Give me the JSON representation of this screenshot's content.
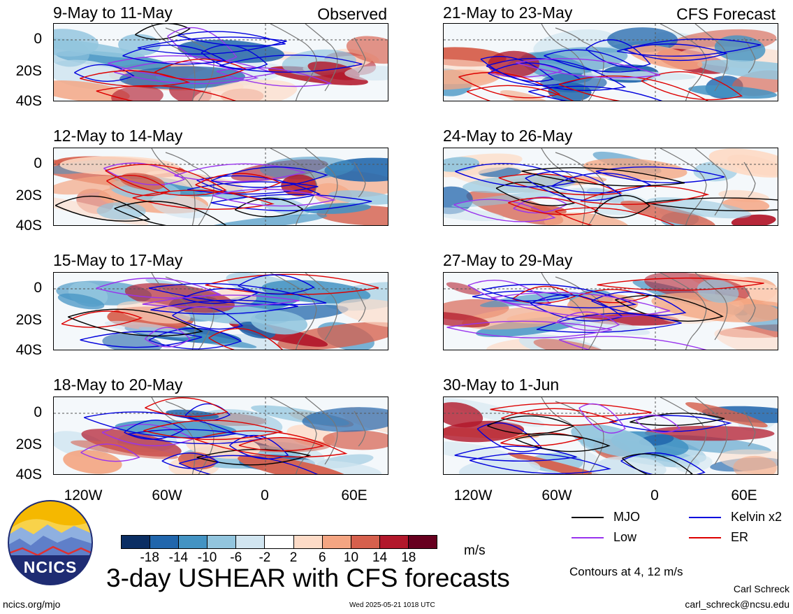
{
  "panels": [
    {
      "title": "9-May to 11-May",
      "tag": "Observed",
      "seed": 11
    },
    {
      "title": "12-May to 14-May",
      "tag": "",
      "seed": 23
    },
    {
      "title": "15-May to 17-May",
      "tag": "",
      "seed": 37
    },
    {
      "title": "18-May to 20-May",
      "tag": "",
      "seed": 41
    },
    {
      "title": "21-May to 23-May",
      "tag": "CFS Forecast",
      "seed": 53
    },
    {
      "title": "24-May to 26-May",
      "tag": "",
      "seed": 67
    },
    {
      "title": "27-May to 29-May",
      "tag": "",
      "seed": 71
    },
    {
      "title": "30-May to 1-Jun",
      "tag": "",
      "seed": 89
    }
  ],
  "y_ticks": [
    "0",
    "20S",
    "40S"
  ],
  "x_ticks": [
    "120W",
    "60W",
    "0",
    "60E"
  ],
  "colorbar": {
    "ticks": [
      "-18",
      "-14",
      "-10",
      "-6",
      "-2",
      "2",
      "6",
      "10",
      "14",
      "18"
    ],
    "colors": [
      "#0b2e63",
      "#2166ac",
      "#4393c3",
      "#92c5de",
      "#d1e5f0",
      "#ffffff",
      "#fddbc7",
      "#f4a582",
      "#d6604d",
      "#b2182b",
      "#67001f"
    ],
    "unit": "m/s"
  },
  "legend": {
    "items": [
      {
        "label": "MJO",
        "color": "#000000"
      },
      {
        "label": "Kelvin x2",
        "color": "#0000dd"
      },
      {
        "label": "Low",
        "color": "#9933ee"
      },
      {
        "label": "ER",
        "color": "#dd0000"
      }
    ],
    "contours_note": "Contours at 4, 12 m/s"
  },
  "title": "3-day USHEAR with CFS forecasts",
  "logo_text": "NCICS",
  "footer": {
    "site": "ncics.org/mjo",
    "timestamp": "Wed 2025-05-21 1018 UTC",
    "author": "Carl Schreck",
    "email": "carl_schreck@ncsu.edu"
  }
}
